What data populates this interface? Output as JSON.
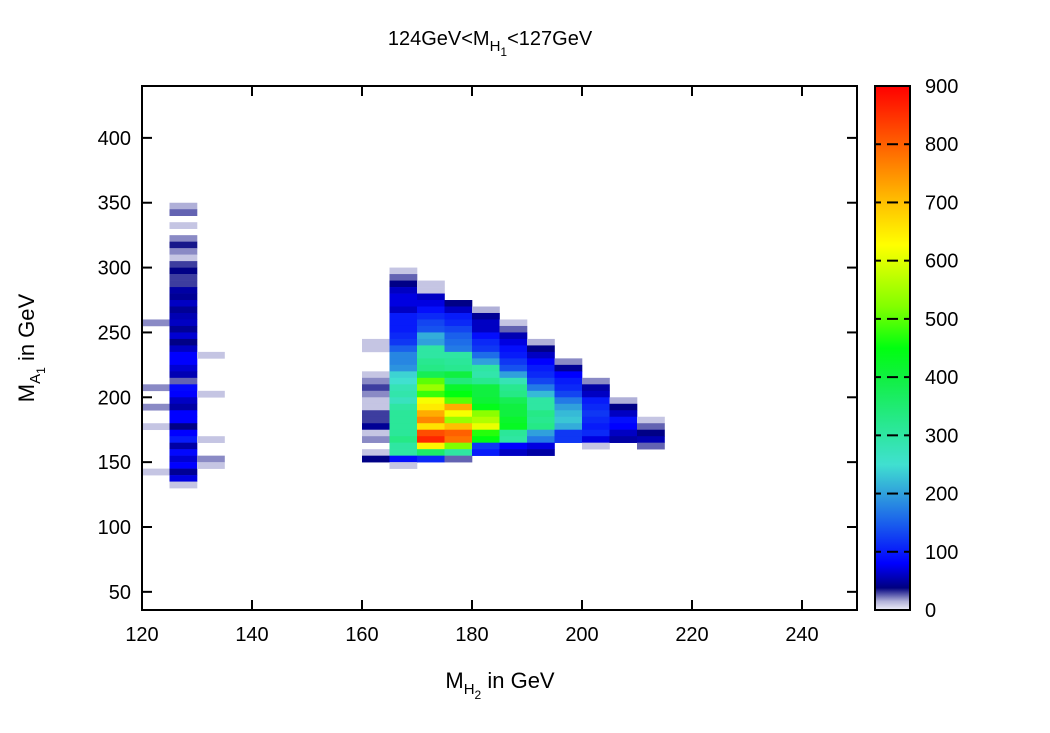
{
  "chart_data": {
    "type": "heatmap",
    "title": {
      "pre": "124GeV<M",
      "sub": "H",
      "subsub": "1",
      "post": "<127GeV"
    },
    "xlabel": {
      "pre": "M",
      "sub": "H",
      "subsub": "2",
      "post": " in GeV"
    },
    "ylabel": {
      "pre": "M",
      "sub": "A",
      "subsub": "1",
      "post": " in GeV"
    },
    "xlim": [
      120,
      250
    ],
    "ylim": [
      36,
      440
    ],
    "xticks": [
      120,
      140,
      160,
      180,
      200,
      220,
      240
    ],
    "yticks": [
      50,
      100,
      150,
      200,
      250,
      300,
      350,
      400
    ],
    "bin_width_x": 5,
    "bin_width_y": 5,
    "colorbar": {
      "range": [
        0,
        900
      ],
      "ticks": [
        0,
        100,
        200,
        300,
        400,
        500,
        600,
        700,
        800,
        900
      ],
      "stops": [
        [
          0,
          "#f0f0fa"
        ],
        [
          15,
          "#b0b0d8"
        ],
        [
          38,
          "#000080"
        ],
        [
          80,
          "#0000ff"
        ],
        [
          150,
          "#1a60ec"
        ],
        [
          200,
          "#30a0dc"
        ],
        [
          250,
          "#40e0d0"
        ],
        [
          320,
          "#28e890"
        ],
        [
          400,
          "#10f040"
        ],
        [
          450,
          "#00ff10"
        ],
        [
          520,
          "#80ff00"
        ],
        [
          627,
          "#ffff00"
        ],
        [
          700,
          "#ffc000"
        ],
        [
          800,
          "#ff6000"
        ],
        [
          900,
          "#ff0000"
        ]
      ]
    },
    "columns": [
      {
        "x0": 120,
        "y_top": 255,
        "counts": [
          20,
          0,
          0,
          0,
          0,
          0,
          0,
          0,
          0,
          0,
          20,
          0,
          0,
          20,
          0,
          0,
          10,
          0,
          0,
          0,
          0,
          0,
          0,
          10
        ]
      },
      {
        "x0": 125,
        "y_top": 345,
        "counts": [
          15,
          25,
          0,
          10,
          0,
          20,
          35,
          20,
          10,
          30,
          40,
          30,
          30,
          50,
          45,
          60,
          45,
          55,
          60,
          45,
          65,
          40,
          60,
          80,
          80,
          65,
          55,
          25,
          85,
          80,
          60,
          50,
          80,
          80,
          40,
          80,
          100,
          50,
          85,
          65,
          80,
          45,
          70,
          10
        ]
      },
      {
        "x0": 130,
        "y_top": 230,
        "counts": [
          10,
          0,
          0,
          0,
          0,
          0,
          10,
          0,
          0,
          0,
          0,
          0,
          0,
          10,
          0,
          0,
          20,
          10
        ]
      },
      {
        "x0": 160,
        "y_top": 240,
        "counts": [
          10,
          10,
          0,
          0,
          0,
          10,
          20,
          30,
          20,
          10,
          10,
          30,
          30,
          45,
          10,
          20,
          0,
          10,
          40
        ]
      },
      {
        "x0": 165,
        "y_top": 295,
        "counts": [
          10,
          25,
          40,
          60,
          70,
          70,
          60,
          100,
          100,
          100,
          110,
          120,
          150,
          180,
          180,
          190,
          240,
          250,
          280,
          290,
          270,
          300,
          310,
          310,
          310,
          310,
          330,
          300,
          300,
          90,
          10
        ]
      },
      {
        "x0": 170,
        "y_top": 285,
        "counts": [
          10,
          10,
          60,
          70,
          90,
          110,
          130,
          140,
          210,
          200,
          300,
          300,
          320,
          330,
          380,
          500,
          540,
          480,
          620,
          650,
          720,
          760,
          660,
          820,
          860,
          640,
          360,
          110
        ]
      },
      {
        "x0": 175,
        "y_top": 270,
        "counts": [
          40,
          60,
          100,
          110,
          130,
          150,
          160,
          170,
          300,
          310,
          320,
          400,
          340,
          420,
          450,
          500,
          720,
          620,
          540,
          700,
          800,
          780,
          520,
          300,
          25
        ]
      },
      {
        "x0": 180,
        "y_top": 265,
        "counts": [
          15,
          45,
          60,
          60,
          90,
          110,
          120,
          160,
          200,
          300,
          290,
          320,
          400,
          400,
          410,
          440,
          530,
          560,
          610,
          470,
          450,
          120,
          100
        ]
      },
      {
        "x0": 185,
        "y_top": 255,
        "counts": [
          10,
          25,
          55,
          70,
          90,
          100,
          120,
          140,
          200,
          280,
          320,
          330,
          380,
          400,
          400,
          420,
          430,
          310,
          300,
          80,
          60
        ]
      },
      {
        "x0": 190,
        "y_top": 240,
        "counts": [
          15,
          40,
          60,
          80,
          100,
          110,
          130,
          170,
          220,
          300,
          300,
          330,
          320,
          330,
          200,
          170,
          70,
          50
        ]
      },
      {
        "x0": 195,
        "y_top": 225,
        "counts": [
          20,
          45,
          80,
          100,
          110,
          130,
          170,
          200,
          220,
          230,
          210,
          120,
          120
        ]
      },
      {
        "x0": 200,
        "y_top": 210,
        "counts": [
          20,
          50,
          60,
          100,
          110,
          120,
          110,
          100,
          110,
          70,
          10
        ]
      },
      {
        "x0": 205,
        "y_top": 195,
        "counts": [
          15,
          40,
          60,
          90,
          80,
          60,
          50
        ]
      },
      {
        "x0": 210,
        "y_top": 180,
        "counts": [
          10,
          25,
          40,
          55,
          25
        ]
      }
    ]
  }
}
